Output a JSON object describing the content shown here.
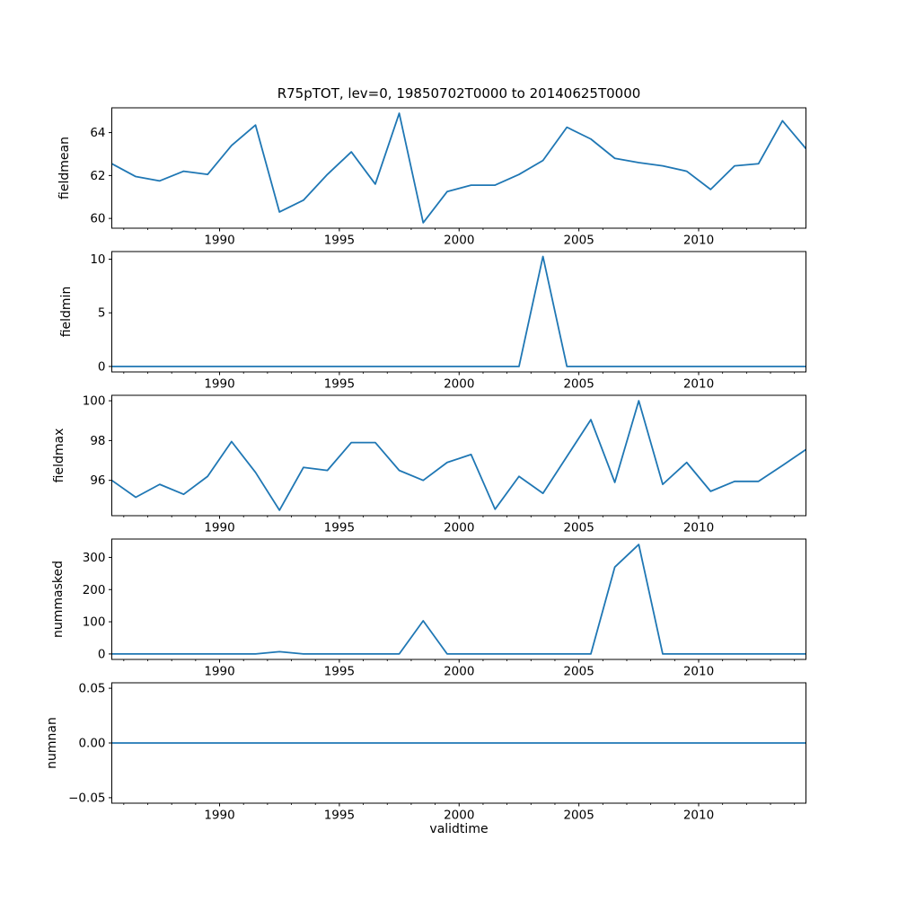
{
  "figure": {
    "title": "R75pTOT, lev=0, 19850702T0000 to 20140625T0000",
    "xlabel": "validtime",
    "line_color": "#1f77b4",
    "axis_color": "#000000",
    "background": "#ffffff"
  },
  "chart_data": {
    "type": "line",
    "title": "R75pTOT, lev=0, 19850702T0000 to 20140625T0000",
    "xlabel": "validtime",
    "legend": "none",
    "grid": false,
    "xlim": [
      1985.5,
      2014.48
    ],
    "xticks": [
      1990,
      1995,
      2000,
      2005,
      2010
    ],
    "xtick_labels": [
      "1990",
      "1995",
      "2000",
      "2005",
      "2010"
    ],
    "minor_xticks_every": 1,
    "x": [
      1985.5,
      1986.5,
      1987.5,
      1988.5,
      1989.5,
      1990.5,
      1991.5,
      1992.5,
      1993.5,
      1994.5,
      1995.5,
      1996.5,
      1997.5,
      1998.5,
      1999.5,
      2000.5,
      2001.5,
      2002.5,
      2003.5,
      2004.5,
      2005.5,
      2006.5,
      2007.5,
      2008.5,
      2009.5,
      2010.5,
      2011.5,
      2012.5,
      2013.5,
      2014.48
    ],
    "subplots": [
      {
        "ylabel": "fieldmean",
        "ylim": [
          59.545,
          65.155
        ],
        "yticks": [
          60,
          62,
          64
        ],
        "ytick_labels": [
          "60",
          "62",
          "64"
        ],
        "y": [
          62.55,
          61.95,
          61.75,
          62.2,
          62.05,
          63.4,
          64.35,
          60.3,
          60.85,
          62.05,
          63.1,
          61.6,
          64.9,
          59.8,
          61.25,
          61.55,
          61.55,
          62.05,
          62.7,
          64.25,
          63.7,
          62.8,
          62.6,
          62.45,
          62.2,
          61.35,
          62.45,
          62.55,
          64.55,
          63.25
        ]
      },
      {
        "ylabel": "fieldmin",
        "ylim": [
          -0.51,
          10.71
        ],
        "yticks": [
          0,
          5,
          10
        ],
        "ytick_labels": [
          "0",
          "5",
          "10"
        ],
        "y": [
          0,
          0,
          0,
          0,
          0,
          0,
          0,
          0,
          0,
          0,
          0,
          0,
          0,
          0,
          0,
          0,
          0,
          0,
          10.25,
          0,
          0,
          0,
          0,
          0,
          0,
          0,
          0,
          0,
          0,
          0
        ]
      },
      {
        "ylabel": "fieldmax",
        "ylim": [
          94.225,
          100.275
        ],
        "yticks": [
          96,
          98,
          100
        ],
        "ytick_labels": [
          "96",
          "98",
          "100"
        ],
        "y": [
          96.0,
          95.15,
          95.8,
          95.3,
          96.2,
          97.95,
          96.4,
          94.5,
          96.65,
          96.5,
          97.9,
          97.9,
          96.5,
          96.0,
          96.9,
          97.3,
          94.55,
          96.2,
          95.35,
          97.2,
          99.05,
          95.9,
          100.0,
          95.8,
          96.9,
          95.45,
          95.95,
          95.95,
          96.75,
          97.55
        ]
      },
      {
        "ylabel": "nummasked",
        "ylim": [
          -17,
          357
        ],
        "yticks": [
          0,
          100,
          200,
          300
        ],
        "ytick_labels": [
          "0",
          "100",
          "200",
          "300"
        ],
        "y": [
          0,
          0,
          0,
          0,
          0,
          0,
          0,
          7,
          0,
          0,
          0,
          0,
          0,
          103,
          0,
          0,
          0,
          0,
          0,
          0,
          0,
          270,
          340,
          0,
          0,
          0,
          0,
          0,
          0,
          0
        ]
      },
      {
        "ylabel": "numnan",
        "ylim": [
          -0.055,
          0.055
        ],
        "yticks": [
          -0.05,
          0,
          0.05
        ],
        "ytick_labels": [
          "−0.05",
          "0.00",
          "0.05"
        ],
        "y": [
          0,
          0,
          0,
          0,
          0,
          0,
          0,
          0,
          0,
          0,
          0,
          0,
          0,
          0,
          0,
          0,
          0,
          0,
          0,
          0,
          0,
          0,
          0,
          0,
          0,
          0,
          0,
          0,
          0,
          0
        ]
      }
    ]
  }
}
